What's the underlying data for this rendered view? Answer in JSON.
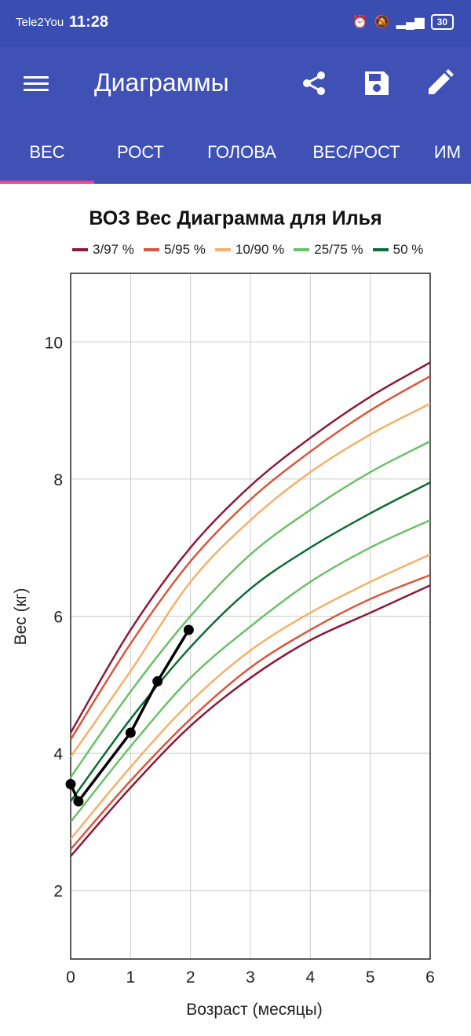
{
  "status_bar": {
    "carrier": "Tele2You",
    "time": "11:28",
    "battery": "30"
  },
  "app_bar": {
    "title": "Диаграммы",
    "share_icon": "share-icon",
    "save_icon": "save-icon",
    "edit_icon": "edit-icon",
    "menu_icon": "menu-icon"
  },
  "tabs": [
    {
      "label": "ВЕС",
      "active": true
    },
    {
      "label": "РОСТ",
      "active": false
    },
    {
      "label": "ГОЛОВА",
      "active": false
    },
    {
      "label": "ВЕС/РОСТ",
      "active": false
    },
    {
      "label": "ИМ",
      "active": false
    }
  ],
  "colors": {
    "status_bar": "#3a4db1",
    "app_bar": "#3f51b5",
    "tab_indicator": "#ff4081"
  },
  "chart_data": {
    "type": "line",
    "title": "ВОЗ Вес Диаграмма для Илья",
    "xlabel": "Возраст (месяцы)",
    "ylabel": "Вес (кг)",
    "xlim": [
      0,
      6
    ],
    "ylim": [
      1,
      11
    ],
    "x_ticks": [
      0,
      1,
      2,
      3,
      4,
      5,
      6
    ],
    "y_ticks": [
      2,
      4,
      6,
      8,
      10
    ],
    "grid": true,
    "legend_position": "top",
    "legend": [
      {
        "label": "3/97 %",
        "color": "#8b1a3a"
      },
      {
        "label": "5/95 %",
        "color": "#d9563e"
      },
      {
        "label": "10/90 %",
        "color": "#f5b06a"
      },
      {
        "label": "25/75 %",
        "color": "#6cc06a"
      },
      {
        "label": "50 %",
        "color": "#0e6b36"
      }
    ],
    "x": [
      0,
      1,
      2,
      3,
      4,
      5,
      6
    ],
    "series": [
      {
        "group": "3/97 %",
        "color": "#8b1a3a",
        "values": [
          4.3,
          5.8,
          7.0,
          7.9,
          8.6,
          9.2,
          9.7
        ]
      },
      {
        "group": "5/95 %",
        "color": "#d9563e",
        "values": [
          4.2,
          5.6,
          6.8,
          7.7,
          8.4,
          9.0,
          9.5
        ]
      },
      {
        "group": "10/90 %",
        "color": "#f5b06a",
        "values": [
          3.95,
          5.2,
          6.5,
          7.4,
          8.1,
          8.65,
          9.1
        ]
      },
      {
        "group": "25/75 %",
        "color": "#6cc06a",
        "values": [
          3.65,
          4.9,
          6.0,
          6.9,
          7.55,
          8.1,
          8.55
        ]
      },
      {
        "group": "50 %",
        "color": "#0e6b36",
        "values": [
          3.3,
          4.5,
          5.55,
          6.4,
          7.0,
          7.5,
          7.95
        ]
      },
      {
        "group": "25/75 %",
        "color": "#6cc06a",
        "values": [
          3.0,
          4.1,
          5.1,
          5.85,
          6.5,
          7.0,
          7.4
        ]
      },
      {
        "group": "10/90 %",
        "color": "#f5b06a",
        "values": [
          2.75,
          3.8,
          4.75,
          5.5,
          6.05,
          6.5,
          6.9
        ]
      },
      {
        "group": "5/95 %",
        "color": "#d9563e",
        "values": [
          2.6,
          3.6,
          4.5,
          5.25,
          5.8,
          6.25,
          6.6
        ]
      },
      {
        "group": "3/97 %",
        "color": "#8b1a3a",
        "values": [
          2.5,
          3.5,
          4.4,
          5.1,
          5.65,
          6.05,
          6.45
        ]
      }
    ],
    "child": {
      "color": "#000000",
      "points": [
        [
          0,
          3.55
        ],
        [
          0.13,
          3.3
        ],
        [
          1.0,
          4.3
        ],
        [
          1.45,
          5.05
        ],
        [
          1.97,
          5.8
        ]
      ]
    }
  }
}
